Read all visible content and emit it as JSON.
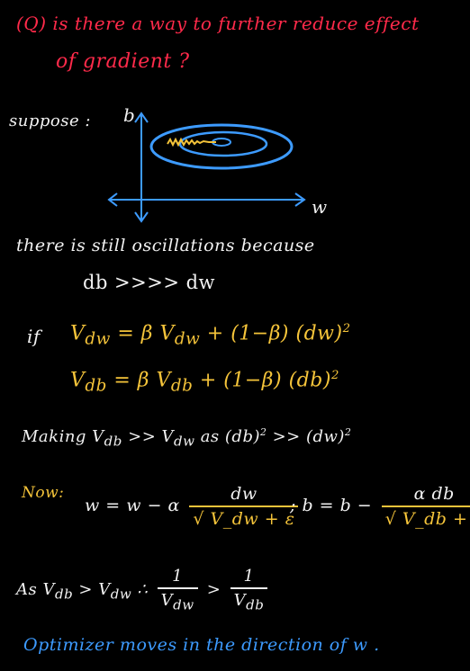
{
  "question": {
    "line1": "(Q) is there a way to further reduce effect",
    "line2": "of gradient ?"
  },
  "diagram": {
    "label": "suppose :",
    "y_axis": "b",
    "x_axis": "w"
  },
  "explanation": {
    "line1": "there is still oscillations because",
    "line2": "db >>>> dw"
  },
  "rmsprop": {
    "if": "if",
    "eq1_lhs": "V",
    "eq1_sub": "dw",
    "eq1_rhs": "= β V",
    "eq1_rhs_sub": "dw",
    "eq1_tail": "+ (1−β) (dw)",
    "eq2_lhs": "V",
    "eq2_sub": "db",
    "eq2_rhs": "= β V",
    "eq2_rhs_sub": "db",
    "eq2_tail": "+ (1−β) (db)",
    "power": "2",
    "making": "Making V",
    "making_sub1": "db",
    "making_mid": ">> V",
    "making_sub2": "dw",
    "making_tail": "as (db)",
    "making_tail2": ">> (dw)"
  },
  "update": {
    "now": "Now:",
    "w_eq": "w = w − α",
    "w_num": "dw",
    "w_den": "√ V_dw + ε",
    "b_eq": "; b = b −",
    "b_num": "α db",
    "b_den": "√ V_db + ε"
  },
  "conclusion": {
    "prefix": "As V",
    "prefix_sub": "db",
    "mid": "> V",
    "mid_sub": "dw",
    "therefore": "∴",
    "one_a": "1",
    "den_a": "V",
    "den_a_sub": "dw",
    "gt": ">",
    "one_b": "1",
    "den_b": "V",
    "den_b_sub": "db",
    "final": "Optimizer moves in the direction of w ."
  },
  "colors": {
    "red": "#ff2a4a",
    "white": "#f2f2f2",
    "yellow": "#f5c43a",
    "blue": "#3d9bff"
  }
}
